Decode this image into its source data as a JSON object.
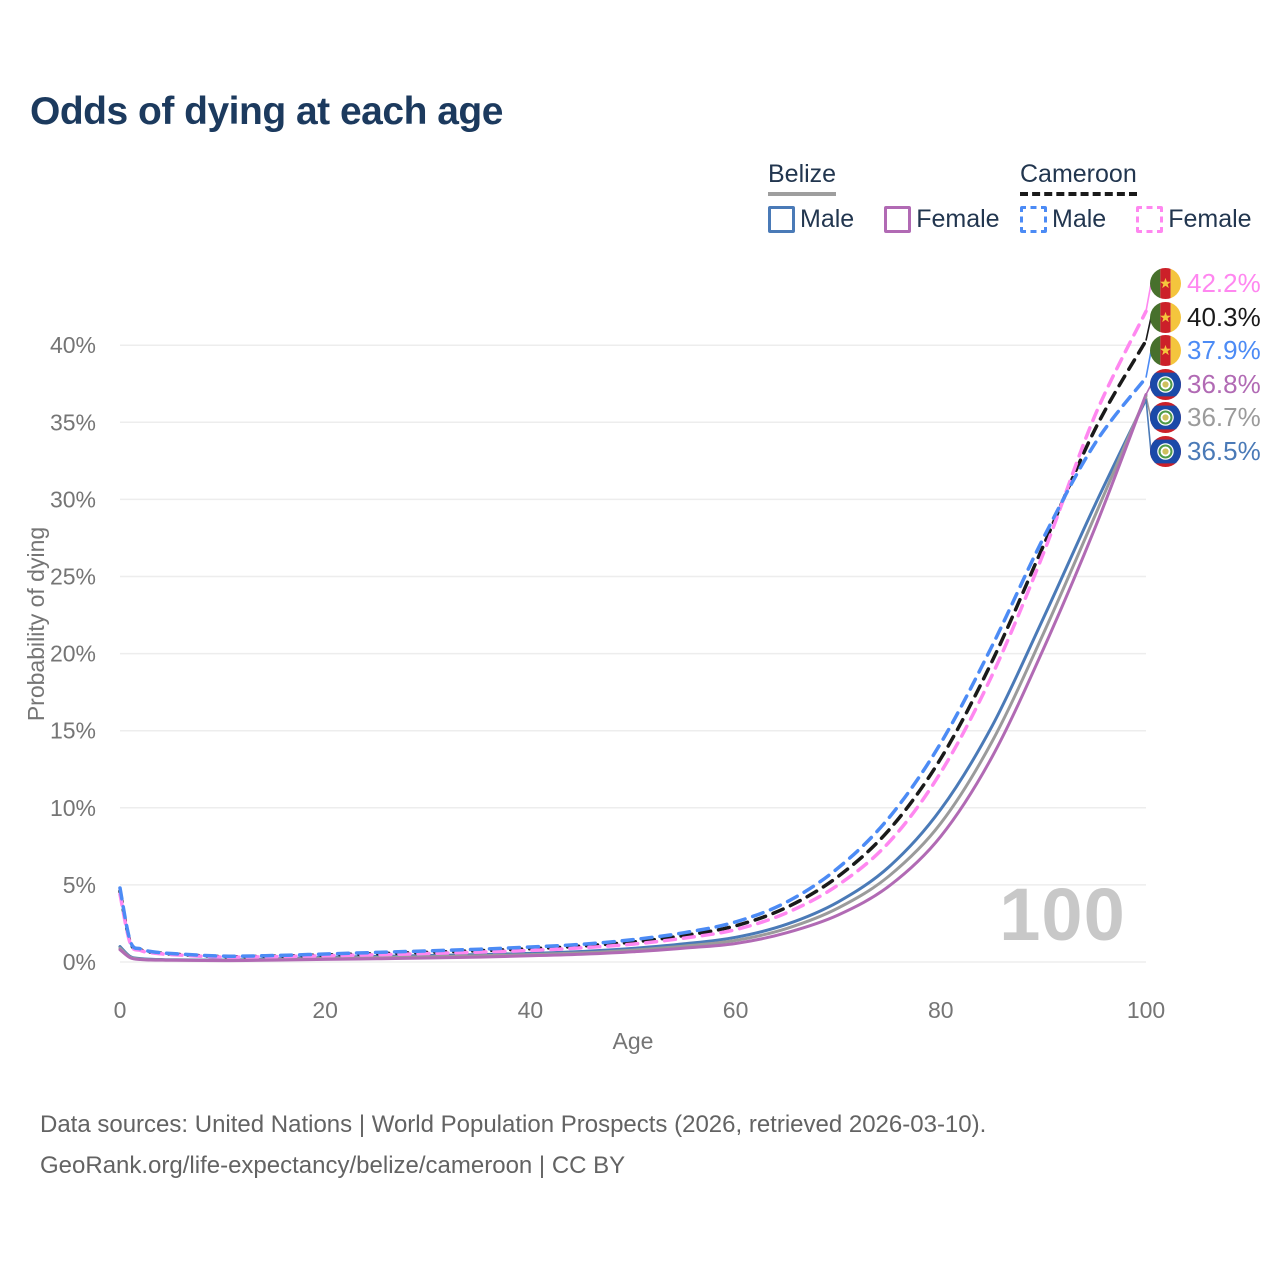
{
  "page": {
    "title": "Odds of dying at each age"
  },
  "legend": {
    "groups": [
      {
        "label": "Belize",
        "style": "solid",
        "items": [
          {
            "label": "Male",
            "color": "#4a7ab7"
          },
          {
            "label": "Female",
            "color": "#b16ab4"
          }
        ]
      },
      {
        "label": "Cameroon",
        "style": "dashed",
        "items": [
          {
            "label": "Male",
            "color": "#4c8bf5"
          },
          {
            "label": "Female",
            "color": "#ff87f0"
          }
        ]
      }
    ]
  },
  "chart_data": {
    "type": "line",
    "title": "Odds of dying at each age",
    "xlabel": "Age",
    "ylabel": "Probability of dying",
    "xlim": [
      0,
      100
    ],
    "ylim": [
      0,
      42.5
    ],
    "grid": true,
    "legend_position": "top-right",
    "watermark": "100",
    "x_ticks": [
      {
        "value": 0,
        "label": "0"
      },
      {
        "value": 20,
        "label": "20"
      },
      {
        "value": 40,
        "label": "40"
      },
      {
        "value": 60,
        "label": "60"
      },
      {
        "value": 80,
        "label": "80"
      },
      {
        "value": 100,
        "label": "100"
      }
    ],
    "y_ticks": [
      {
        "value": 0,
        "label": "0%"
      },
      {
        "value": 5,
        "label": "5%"
      },
      {
        "value": 10,
        "label": "10%"
      },
      {
        "value": 15,
        "label": "15%"
      },
      {
        "value": 20,
        "label": "20%"
      },
      {
        "value": 25,
        "label": "25%"
      },
      {
        "value": 30,
        "label": "30%"
      },
      {
        "value": 35,
        "label": "35%"
      },
      {
        "value": 40,
        "label": "40%"
      }
    ],
    "ages": [
      0,
      1,
      2,
      3,
      4,
      5,
      10,
      15,
      20,
      25,
      30,
      35,
      40,
      45,
      50,
      55,
      60,
      65,
      70,
      75,
      80,
      85,
      90,
      95,
      100
    ],
    "series": [
      {
        "name": "Belize Male",
        "country": "Belize",
        "sex": "male",
        "color": "#4a7ab7",
        "dash": false,
        "values": [
          1.0,
          0.35,
          0.22,
          0.18,
          0.16,
          0.15,
          0.13,
          0.2,
          0.3,
          0.36,
          0.42,
          0.48,
          0.56,
          0.68,
          0.88,
          1.18,
          1.6,
          2.45,
          3.9,
          6.2,
          9.9,
          15.3,
          22.3,
          29.6,
          36.5
        ]
      },
      {
        "name": "Belize Both sexes",
        "country": "Belize",
        "sex": "both",
        "color": "#9b9b9b",
        "dash": false,
        "values": [
          0.9,
          0.31,
          0.19,
          0.15,
          0.14,
          0.13,
          0.11,
          0.16,
          0.24,
          0.29,
          0.34,
          0.4,
          0.48,
          0.59,
          0.77,
          1.03,
          1.4,
          2.18,
          3.5,
          5.6,
          9.0,
          14.3,
          21.3,
          28.9,
          36.7
        ]
      },
      {
        "name": "Belize Female",
        "country": "Belize",
        "sex": "female",
        "color": "#b16ab4",
        "dash": false,
        "values": [
          0.8,
          0.27,
          0.16,
          0.13,
          0.12,
          0.11,
          0.09,
          0.12,
          0.17,
          0.21,
          0.26,
          0.32,
          0.4,
          0.5,
          0.66,
          0.9,
          1.2,
          1.9,
          3.05,
          4.95,
          8.15,
          13.3,
          20.3,
          28.1,
          36.8
        ]
      },
      {
        "name": "Cameroon Both sexes",
        "country": "Cameroon",
        "sex": "both",
        "color": "#1a1a1a",
        "dash": true,
        "values": [
          4.6,
          1.27,
          0.8,
          0.64,
          0.57,
          0.52,
          0.35,
          0.38,
          0.46,
          0.54,
          0.63,
          0.73,
          0.86,
          1.03,
          1.3,
          1.72,
          2.35,
          3.55,
          5.55,
          8.6,
          13.2,
          19.5,
          27.0,
          34.5,
          40.3
        ]
      },
      {
        "name": "Cameroon Female",
        "country": "Cameroon",
        "sex": "female",
        "color": "#ff87f0",
        "dash": true,
        "values": [
          4.4,
          1.2,
          0.75,
          0.6,
          0.53,
          0.48,
          0.32,
          0.35,
          0.4,
          0.47,
          0.55,
          0.64,
          0.75,
          0.92,
          1.16,
          1.55,
          2.1,
          3.2,
          5.0,
          7.8,
          12.3,
          18.6,
          26.5,
          35.4,
          42.2
        ]
      },
      {
        "name": "Cameroon Male",
        "country": "Cameroon",
        "sex": "male",
        "color": "#4c8bf5",
        "dash": true,
        "values": [
          4.8,
          1.35,
          0.85,
          0.68,
          0.6,
          0.55,
          0.38,
          0.42,
          0.52,
          0.62,
          0.72,
          0.83,
          0.97,
          1.15,
          1.45,
          1.9,
          2.6,
          3.9,
          6.1,
          9.4,
          14.2,
          20.5,
          27.5,
          33.6,
          37.9
        ]
      }
    ],
    "end_labels": [
      {
        "text": "42.2%",
        "value": 42.2,
        "series": "Cameroon Female",
        "flag": "cameroon",
        "color": "#ff87f0"
      },
      {
        "text": "40.3%",
        "value": 40.3,
        "series": "Cameroon Both sexes",
        "flag": "cameroon",
        "color": "#1a1a1a"
      },
      {
        "text": "37.9%",
        "value": 37.9,
        "series": "Cameroon Male",
        "flag": "cameroon",
        "color": "#4c8bf5"
      },
      {
        "text": "36.8%",
        "value": 36.8,
        "series": "Belize Female",
        "flag": "belize",
        "color": "#b16ab4"
      },
      {
        "text": "36.7%",
        "value": 36.7,
        "series": "Belize Both sexes",
        "flag": "belize",
        "color": "#9b9b9b"
      },
      {
        "text": "36.5%",
        "value": 36.5,
        "series": "Belize Male",
        "flag": "belize",
        "color": "#4a7ab7"
      }
    ],
    "colors": {
      "title": "#1c3a5e",
      "axis_text": "#757575",
      "grid": "#ededed",
      "watermark": "#c8c8c8",
      "footer": "#636363"
    }
  },
  "footer": {
    "line1": "Data sources: United Nations | World Population Prospects (2026, retrieved 2026-03-10).",
    "line2": "GeoRank.org/life-expectancy/belize/cameroon | CC BY"
  }
}
